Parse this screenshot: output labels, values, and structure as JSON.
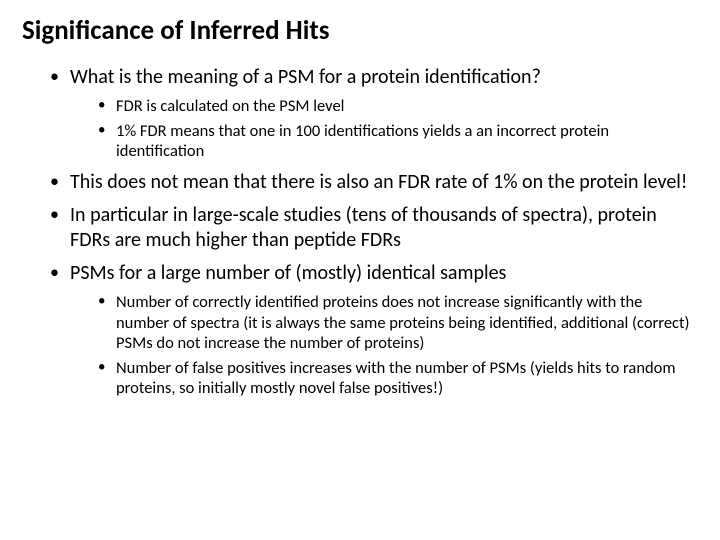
{
  "title": "Significance of Inferred Hits",
  "bullets": {
    "b1": "What is the meaning of a PSM for a protein identification?",
    "b1_sub": {
      "s1": "FDR is calculated on the PSM level",
      "s2": "1% FDR means that one in 100 identifications yields a an incorrect protein identification"
    },
    "b2": "This does not mean that there is also an FDR rate of 1% on the protein level!",
    "b3": "In particular in large-scale studies (tens of thousands of spectra), protein FDRs are much higher than peptide FDRs",
    "b4": "PSMs for a large number of (mostly) identical samples",
    "b4_sub": {
      "s1": "Number of correctly identified proteins does not increase significantly with the number of spectra (it is always the same proteins being identified, additional (correct) PSMs do not increase the number of proteins)",
      "s2": "Number of false positives increases with the number of PSMs (yields hits to random proteins, so initially mostly novel false positives!)"
    }
  },
  "colors": {
    "text": "#000000",
    "background": "#ffffff"
  },
  "typography": {
    "title_fontsize": 27,
    "title_weight": 700,
    "level1_fontsize": 20,
    "level2_fontsize": 16.5,
    "font_family": "Calibri"
  }
}
